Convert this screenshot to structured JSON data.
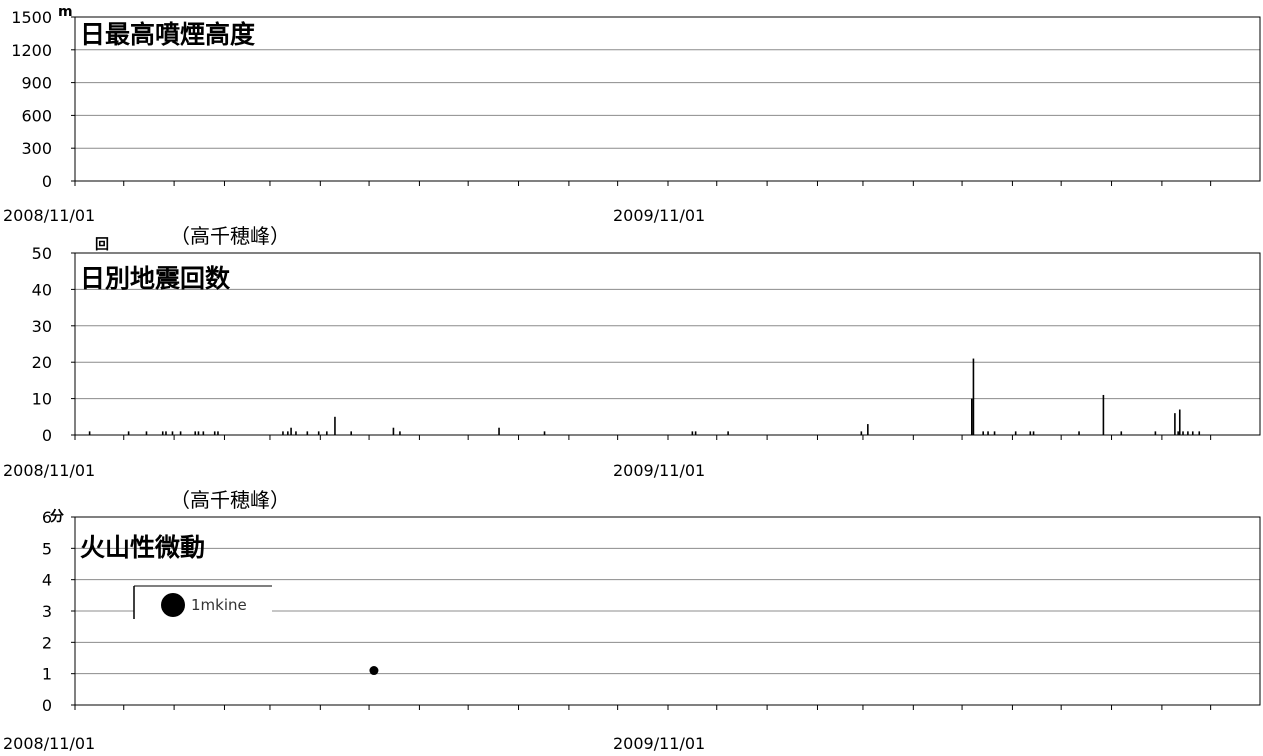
{
  "chart_data": [
    {
      "type": "bar",
      "title": "日最高噴煙高度",
      "unit": "m",
      "ylim": [
        0,
        1500
      ],
      "yticks": [
        0,
        300,
        600,
        900,
        1200,
        1500
      ],
      "x_tick_labels": [
        "2008/11/01",
        "2009/11/01"
      ],
      "grid": true,
      "series": [
        {
          "values": []
        }
      ]
    },
    {
      "type": "bar",
      "title": "日別地震回数",
      "subtitle": "（高千穂峰）",
      "unit": "回",
      "ylim": [
        0,
        50
      ],
      "yticks": [
        0,
        10,
        20,
        30,
        40,
        50
      ],
      "x_tick_labels": [
        "2008/11/01",
        "2009/11/01"
      ],
      "grid": true,
      "series": [
        {
          "points": [
            {
              "x": "2008-11-10",
              "y": 1
            },
            {
              "x": "2008-12-04",
              "y": 1
            },
            {
              "x": "2008-12-15",
              "y": 1
            },
            {
              "x": "2008-12-25",
              "y": 1
            },
            {
              "x": "2008-12-27",
              "y": 1
            },
            {
              "x": "2008-12-31",
              "y": 1
            },
            {
              "x": "2009-01-05",
              "y": 1
            },
            {
              "x": "2009-01-14",
              "y": 1
            },
            {
              "x": "2009-01-16",
              "y": 1
            },
            {
              "x": "2009-01-19",
              "y": 1
            },
            {
              "x": "2009-01-26",
              "y": 1
            },
            {
              "x": "2009-01-28",
              "y": 1
            },
            {
              "x": "2009-03-09",
              "y": 1
            },
            {
              "x": "2009-03-12",
              "y": 1
            },
            {
              "x": "2009-03-14",
              "y": 2
            },
            {
              "x": "2009-03-17",
              "y": 1
            },
            {
              "x": "2009-03-24",
              "y": 1
            },
            {
              "x": "2009-03-31",
              "y": 1
            },
            {
              "x": "2009-04-05",
              "y": 1
            },
            {
              "x": "2009-04-10",
              "y": 5
            },
            {
              "x": "2009-04-20",
              "y": 1
            },
            {
              "x": "2009-05-16",
              "y": 2
            },
            {
              "x": "2009-05-20",
              "y": 1
            },
            {
              "x": "2009-07-20",
              "y": 2
            },
            {
              "x": "2009-08-17",
              "y": 1
            },
            {
              "x": "2009-11-16",
              "y": 1
            },
            {
              "x": "2009-11-18",
              "y": 1
            },
            {
              "x": "2009-12-08",
              "y": 1
            },
            {
              "x": "2010-02-28",
              "y": 1
            },
            {
              "x": "2010-03-04",
              "y": 3
            },
            {
              "x": "2010-05-07",
              "y": 10
            },
            {
              "x": "2010-05-08",
              "y": 21
            },
            {
              "x": "2010-05-14",
              "y": 1
            },
            {
              "x": "2010-05-17",
              "y": 1
            },
            {
              "x": "2010-05-21",
              "y": 1
            },
            {
              "x": "2010-06-03",
              "y": 1
            },
            {
              "x": "2010-06-12",
              "y": 1
            },
            {
              "x": "2010-06-14",
              "y": 1
            },
            {
              "x": "2010-07-12",
              "y": 1
            },
            {
              "x": "2010-07-27",
              "y": 11
            },
            {
              "x": "2010-08-07",
              "y": 1
            },
            {
              "x": "2010-08-28",
              "y": 1
            },
            {
              "x": "2010-09-09",
              "y": 6
            },
            {
              "x": "2010-09-11",
              "y": 1
            },
            {
              "x": "2010-09-12",
              "y": 7
            },
            {
              "x": "2010-09-14",
              "y": 1
            },
            {
              "x": "2010-09-17",
              "y": 1
            },
            {
              "x": "2010-09-20",
              "y": 1
            },
            {
              "x": "2010-09-24",
              "y": 1
            }
          ]
        }
      ]
    },
    {
      "type": "scatter",
      "title": "火山性微動",
      "subtitle": "（高千穂峰）",
      "unit": "分",
      "ylim": [
        0,
        6
      ],
      "yticks": [
        0,
        1,
        2,
        3,
        4,
        5,
        6
      ],
      "x_tick_labels": [
        "2008/11/01",
        "2009/11/01"
      ],
      "grid": true,
      "legend": {
        "label": "1mkine",
        "position": "top-left"
      },
      "series": [
        {
          "name": "1mkine",
          "points": [
            {
              "x": "2009-05-04",
              "y": 1.1
            }
          ]
        }
      ]
    }
  ]
}
